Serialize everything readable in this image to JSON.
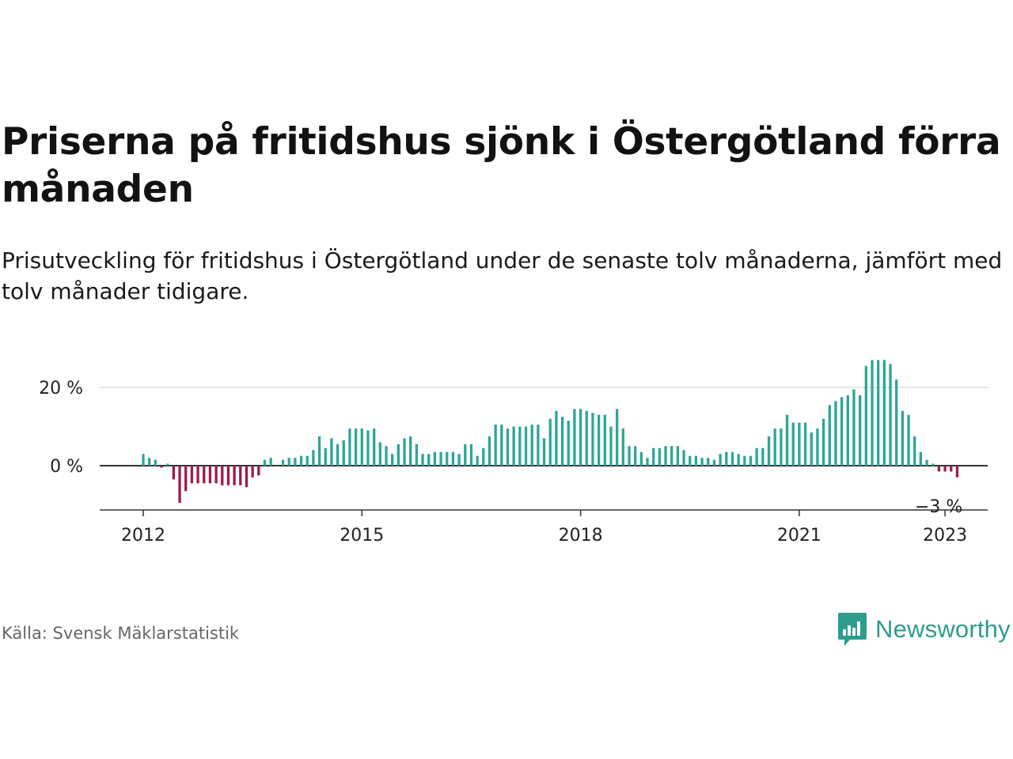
{
  "title": "Priserna på fritidshus sjönk i Östergötland förra månaden",
  "subtitle": "Prisutveckling för fritidshus i Östergötland under de senaste tolv månaderna, jämfört med tolv månader tidigare.",
  "source": "Källa: Svensk Mäklarstatistik",
  "brand": {
    "name": "Newsworthy",
    "icon": "newsworthy-logo-icon",
    "color": "#2e9c8f"
  },
  "colors": {
    "positive": "#2ca699",
    "negative": "#a0194a",
    "zero_line": "#333333",
    "grid": "#dddddd"
  },
  "chart_data": {
    "type": "bar",
    "y_unit": "%",
    "x_start": "2012-01",
    "x_ticks": [
      "2012",
      "2015",
      "2018",
      "2021",
      "2023"
    ],
    "y_ticks": [
      {
        "value": 0,
        "label": "0 %"
      },
      {
        "value": 20,
        "label": "20 %"
      }
    ],
    "ylim": [
      -11,
      29
    ],
    "grid": true,
    "annotation": {
      "label": "−3 %",
      "value": -3,
      "date": "2023-01"
    },
    "values": [
      3,
      2,
      1.5,
      -0.5,
      0.5,
      -3.5,
      -9.5,
      -6.5,
      -4.5,
      -4.5,
      -4.5,
      -4.5,
      -4.5,
      -5,
      -5,
      -5,
      -5,
      -5.5,
      -3,
      -2.5,
      1.5,
      2,
      0,
      1.5,
      2,
      2,
      2.5,
      2.5,
      4,
      7.5,
      4.5,
      7,
      5.5,
      6.5,
      9.5,
      9.5,
      9.5,
      9,
      9.5,
      6,
      5,
      3,
      5.5,
      7,
      7.5,
      5.5,
      3,
      3,
      3.5,
      3.5,
      3.5,
      3.5,
      3,
      5.5,
      5.5,
      2.5,
      4.5,
      7.5,
      10.5,
      10.5,
      9.5,
      10,
      10,
      10,
      10.5,
      10.5,
      7,
      12,
      14,
      12.5,
      11.5,
      14.5,
      14.5,
      14,
      13.5,
      13,
      13,
      10,
      14.5,
      9.5,
      5,
      5,
      3.5,
      2,
      4.5,
      4.5,
      5,
      5,
      5,
      4,
      2.5,
      2.5,
      2,
      2,
      1.5,
      3,
      3.5,
      3.5,
      3,
      2.5,
      2.5,
      4.5,
      4.5,
      7.5,
      9.5,
      9.5,
      13,
      11,
      11,
      11,
      8.5,
      9.5,
      12,
      15.5,
      16.5,
      17.5,
      18,
      19.5,
      18,
      25.5,
      27,
      27,
      27,
      26,
      22,
      14,
      13,
      7.5,
      3.5,
      1.5,
      0.5,
      -1.5,
      -1.5,
      -1.5,
      -3
    ]
  }
}
